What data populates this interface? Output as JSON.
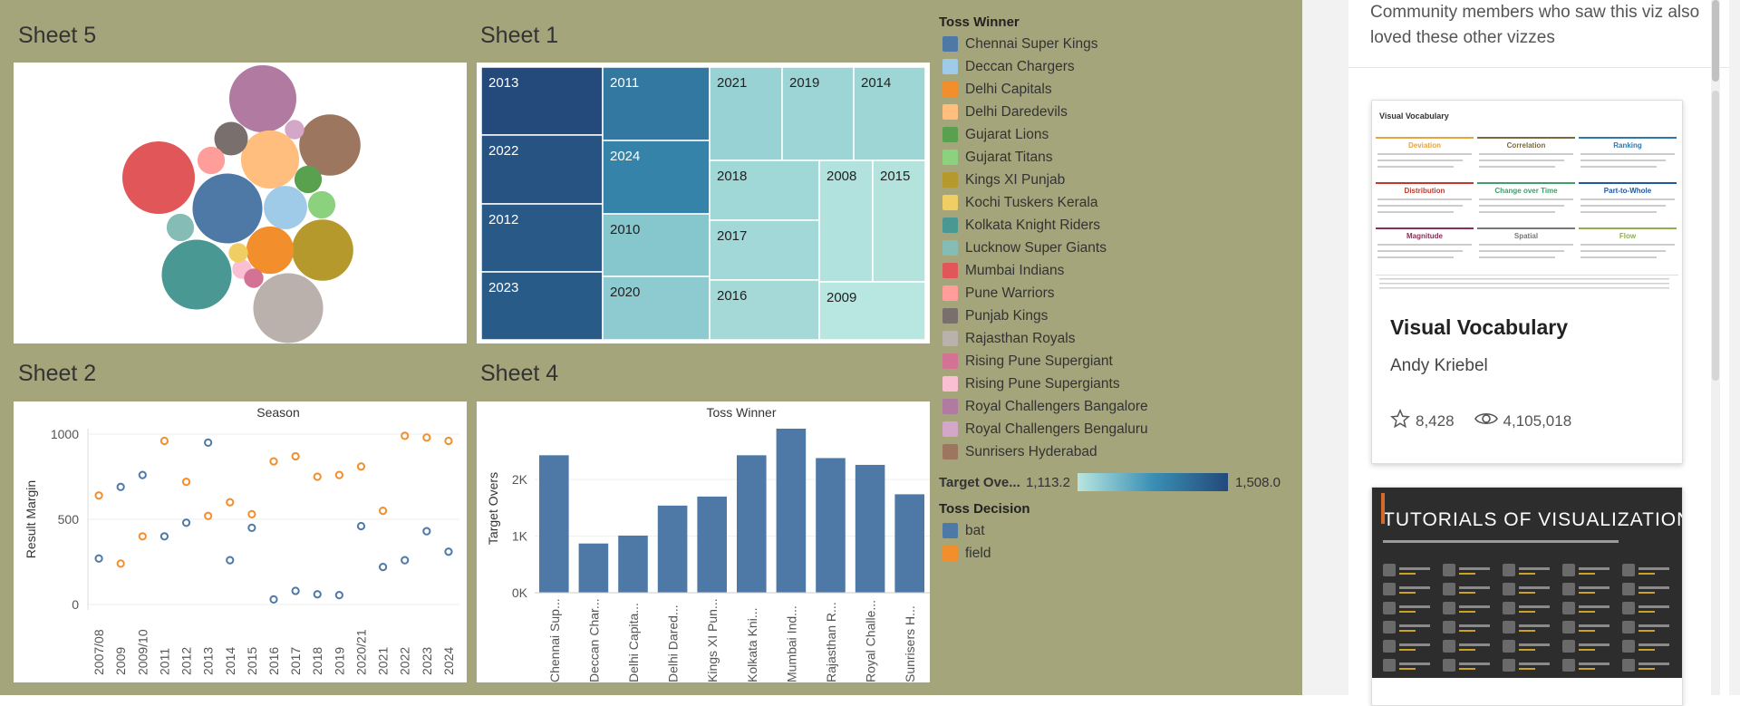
{
  "sheets": {
    "sheet5_title": "Sheet 5",
    "sheet1_title": "Sheet 1",
    "sheet2_title": "Sheet 2",
    "sheet4_title": "Sheet 4"
  },
  "legend": {
    "toss_winner_title": "Toss Winner",
    "teams": [
      {
        "name": "Chennai Super Kings",
        "color": "#4e79a7"
      },
      {
        "name": "Deccan Chargers",
        "color": "#a0cbe8"
      },
      {
        "name": "Delhi Capitals",
        "color": "#f28e2b"
      },
      {
        "name": "Delhi Daredevils",
        "color": "#ffbe7d"
      },
      {
        "name": "Gujarat Lions",
        "color": "#59a14f"
      },
      {
        "name": "Gujarat Titans",
        "color": "#8cd17d"
      },
      {
        "name": "Kings XI Punjab",
        "color": "#b6992d"
      },
      {
        "name": "Kochi Tuskers Kerala",
        "color": "#f1ce63"
      },
      {
        "name": "Kolkata Knight Riders",
        "color": "#499894"
      },
      {
        "name": "Lucknow Super Giants",
        "color": "#86bcb6"
      },
      {
        "name": "Mumbai Indians",
        "color": "#e15759"
      },
      {
        "name": "Pune Warriors",
        "color": "#ff9d9a"
      },
      {
        "name": "Punjab Kings",
        "color": "#79706e"
      },
      {
        "name": "Rajasthan Royals",
        "color": "#bab0ac"
      },
      {
        "name": "Rising Pune Supergiant",
        "color": "#d37295"
      },
      {
        "name": "Rising Pune Supergiants",
        "color": "#fabfd2"
      },
      {
        "name": "Royal Challengers Bangalore",
        "color": "#b07aa1"
      },
      {
        "name": "Royal Challengers Bengaluru",
        "color": "#d4a6c8"
      },
      {
        "name": "Sunrisers Hyderabad",
        "color": "#9d7660"
      }
    ],
    "target_overs_title": "Target Ove...",
    "target_overs_min": "1,113.2",
    "target_overs_max": "1,508.0",
    "toss_decision_title": "Toss Decision",
    "decisions": [
      {
        "name": "bat",
        "color": "#4e79a7"
      },
      {
        "name": "field",
        "color": "#f28e2b"
      }
    ]
  },
  "chart_data": [
    {
      "type": "bubble",
      "title": "Sheet 5",
      "bubbles": [
        {
          "team": "Rajasthan Royals",
          "size": 13
        },
        {
          "team": "Mumbai Indians",
          "size": 14
        },
        {
          "team": "Kolkata Knight Riders",
          "size": 13
        },
        {
          "team": "Chennai Super Kings",
          "size": 13
        },
        {
          "team": "Royal Challengers Bangalore",
          "size": 12
        },
        {
          "team": "Kings XI Punjab",
          "size": 10
        },
        {
          "team": "Sunrisers Hyderabad",
          "size": 10
        },
        {
          "team": "Delhi Daredevils",
          "size": 9
        },
        {
          "team": "Delhi Capitals",
          "size": 6
        },
        {
          "team": "Deccan Chargers",
          "size": 5
        },
        {
          "team": "Punjab Kings",
          "size": 3
        },
        {
          "team": "Pune Warriors",
          "size": 2
        },
        {
          "team": "Gujarat Titans",
          "size": 2
        },
        {
          "team": "Lucknow Super Giants",
          "size": 2
        },
        {
          "team": "Gujarat Lions",
          "size": 2
        },
        {
          "team": "Rising Pune Supergiants",
          "size": 1
        },
        {
          "team": "Kochi Tuskers Kerala",
          "size": 1
        },
        {
          "team": "Rising Pune Supergiant",
          "size": 1
        },
        {
          "team": "Royal Challengers Bengaluru",
          "size": 1
        }
      ]
    },
    {
      "type": "treemap",
      "title": "Sheet 1",
      "cells": [
        {
          "label": "2013",
          "value": 1508.0
        },
        {
          "label": "2022",
          "value": 1490
        },
        {
          "label": "2012",
          "value": 1480
        },
        {
          "label": "2023",
          "value": 1475
        },
        {
          "label": "2011",
          "value": 1420
        },
        {
          "label": "2024",
          "value": 1400
        },
        {
          "label": "2010",
          "value": 1250
        },
        {
          "label": "2020",
          "value": 1230
        },
        {
          "label": "2021",
          "value": 1200
        },
        {
          "label": "2019",
          "value": 1190
        },
        {
          "label": "2014",
          "value": 1185
        },
        {
          "label": "2018",
          "value": 1180
        },
        {
          "label": "2017",
          "value": 1175
        },
        {
          "label": "2016",
          "value": 1170
        },
        {
          "label": "2008",
          "value": 1130
        },
        {
          "label": "2015",
          "value": 1125
        },
        {
          "label": "2009",
          "value": 1113.2
        }
      ]
    },
    {
      "type": "scatter",
      "title": "Season",
      "ylabel": "Result Margin",
      "categories": [
        "2007/08",
        "2009",
        "2009/10",
        "2011",
        "2012",
        "2013",
        "2014",
        "2015",
        "2016",
        "2017",
        "2018",
        "2019",
        "2020/21",
        "2021",
        "2022",
        "2023",
        "2024"
      ],
      "yticks": [
        "1000",
        "500",
        "0"
      ],
      "ylim": [
        0,
        1000
      ],
      "series": [
        {
          "name": "bat",
          "values": [
            270,
            690,
            760,
            400,
            480,
            950,
            260,
            450,
            30,
            80,
            60,
            55,
            460,
            220,
            260,
            430,
            310
          ]
        },
        {
          "name": "field",
          "values": [
            640,
            240,
            400,
            960,
            720,
            520,
            600,
            530,
            840,
            870,
            750,
            760,
            810,
            550,
            990,
            980,
            960
          ]
        }
      ]
    },
    {
      "type": "bar",
      "title": "Toss Winner",
      "ylabel": "Target Overs",
      "yticks": [
        "2K",
        "1K",
        "0K"
      ],
      "ylim": [
        0,
        2900
      ],
      "categories": [
        "Chennai Sup...",
        "Deccan Char...",
        "Delhi Capita...",
        "Delhi Dared...",
        "Kings XI Pun...",
        "Kolkata Kni...",
        "Mumbai Ind...",
        "Rajasthan R...",
        "Royal Challe...",
        "Sunrisers H..."
      ],
      "values": [
        2430,
        870,
        1010,
        1540,
        1700,
        2430,
        2900,
        2380,
        2260,
        1740
      ]
    }
  ],
  "rightbar": {
    "header": "Community members who saw this viz also loved these other vizzes",
    "cards": [
      {
        "title": "Visual Vocabulary",
        "author": "Andy Kriebel",
        "favorites": "8,428",
        "views": "4,105,018",
        "thumb_title": "Visual Vocabulary",
        "thumb_sections": [
          "Deviation",
          "Correlation",
          "Ranking",
          "Distribution",
          "Change over Time",
          "Part-to-Whole",
          "Magnitude",
          "Spatial",
          "Flow"
        ]
      },
      {
        "title": "Tutorials of Visualizations",
        "thumb_title": "TUTORIALS OF VISUALIZATIONS"
      }
    ]
  }
}
